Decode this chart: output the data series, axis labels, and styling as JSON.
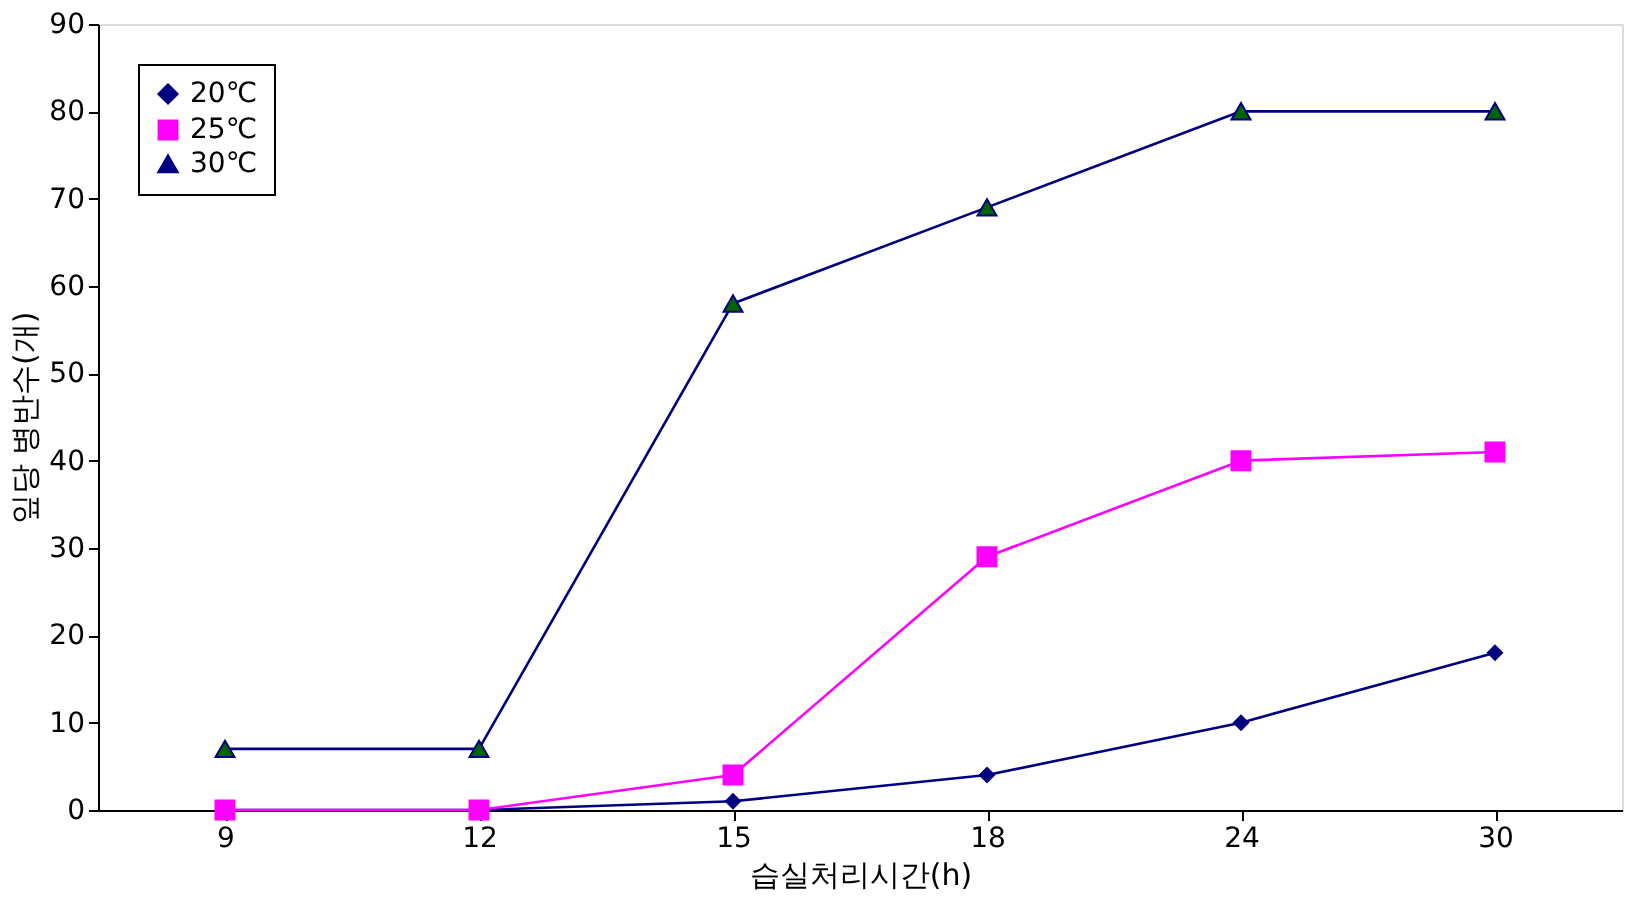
{
  "chart_data": {
    "type": "line",
    "xlabel": "습실처리시간(h)",
    "ylabel": "잎당 병반수(개)",
    "categories": [
      "9",
      "12",
      "15",
      "18",
      "24",
      "30"
    ],
    "series": [
      {
        "name": "20℃",
        "color": "#000080",
        "marker": "diamond",
        "values": [
          0,
          0,
          1,
          4,
          10,
          18
        ]
      },
      {
        "name": "25℃",
        "color": "#ff00ff",
        "marker": "square",
        "values": [
          0,
          0,
          4,
          29,
          40,
          41
        ]
      },
      {
        "name": "30℃",
        "color": "#000080",
        "marker": "triangle",
        "values": [
          7,
          7,
          58,
          69,
          80,
          80
        ]
      }
    ],
    "ylim": [
      0,
      90
    ],
    "yticks": [
      0,
      10,
      20,
      30,
      40,
      50,
      60,
      70,
      80,
      90
    ],
    "grid": false,
    "legend": "top left"
  }
}
